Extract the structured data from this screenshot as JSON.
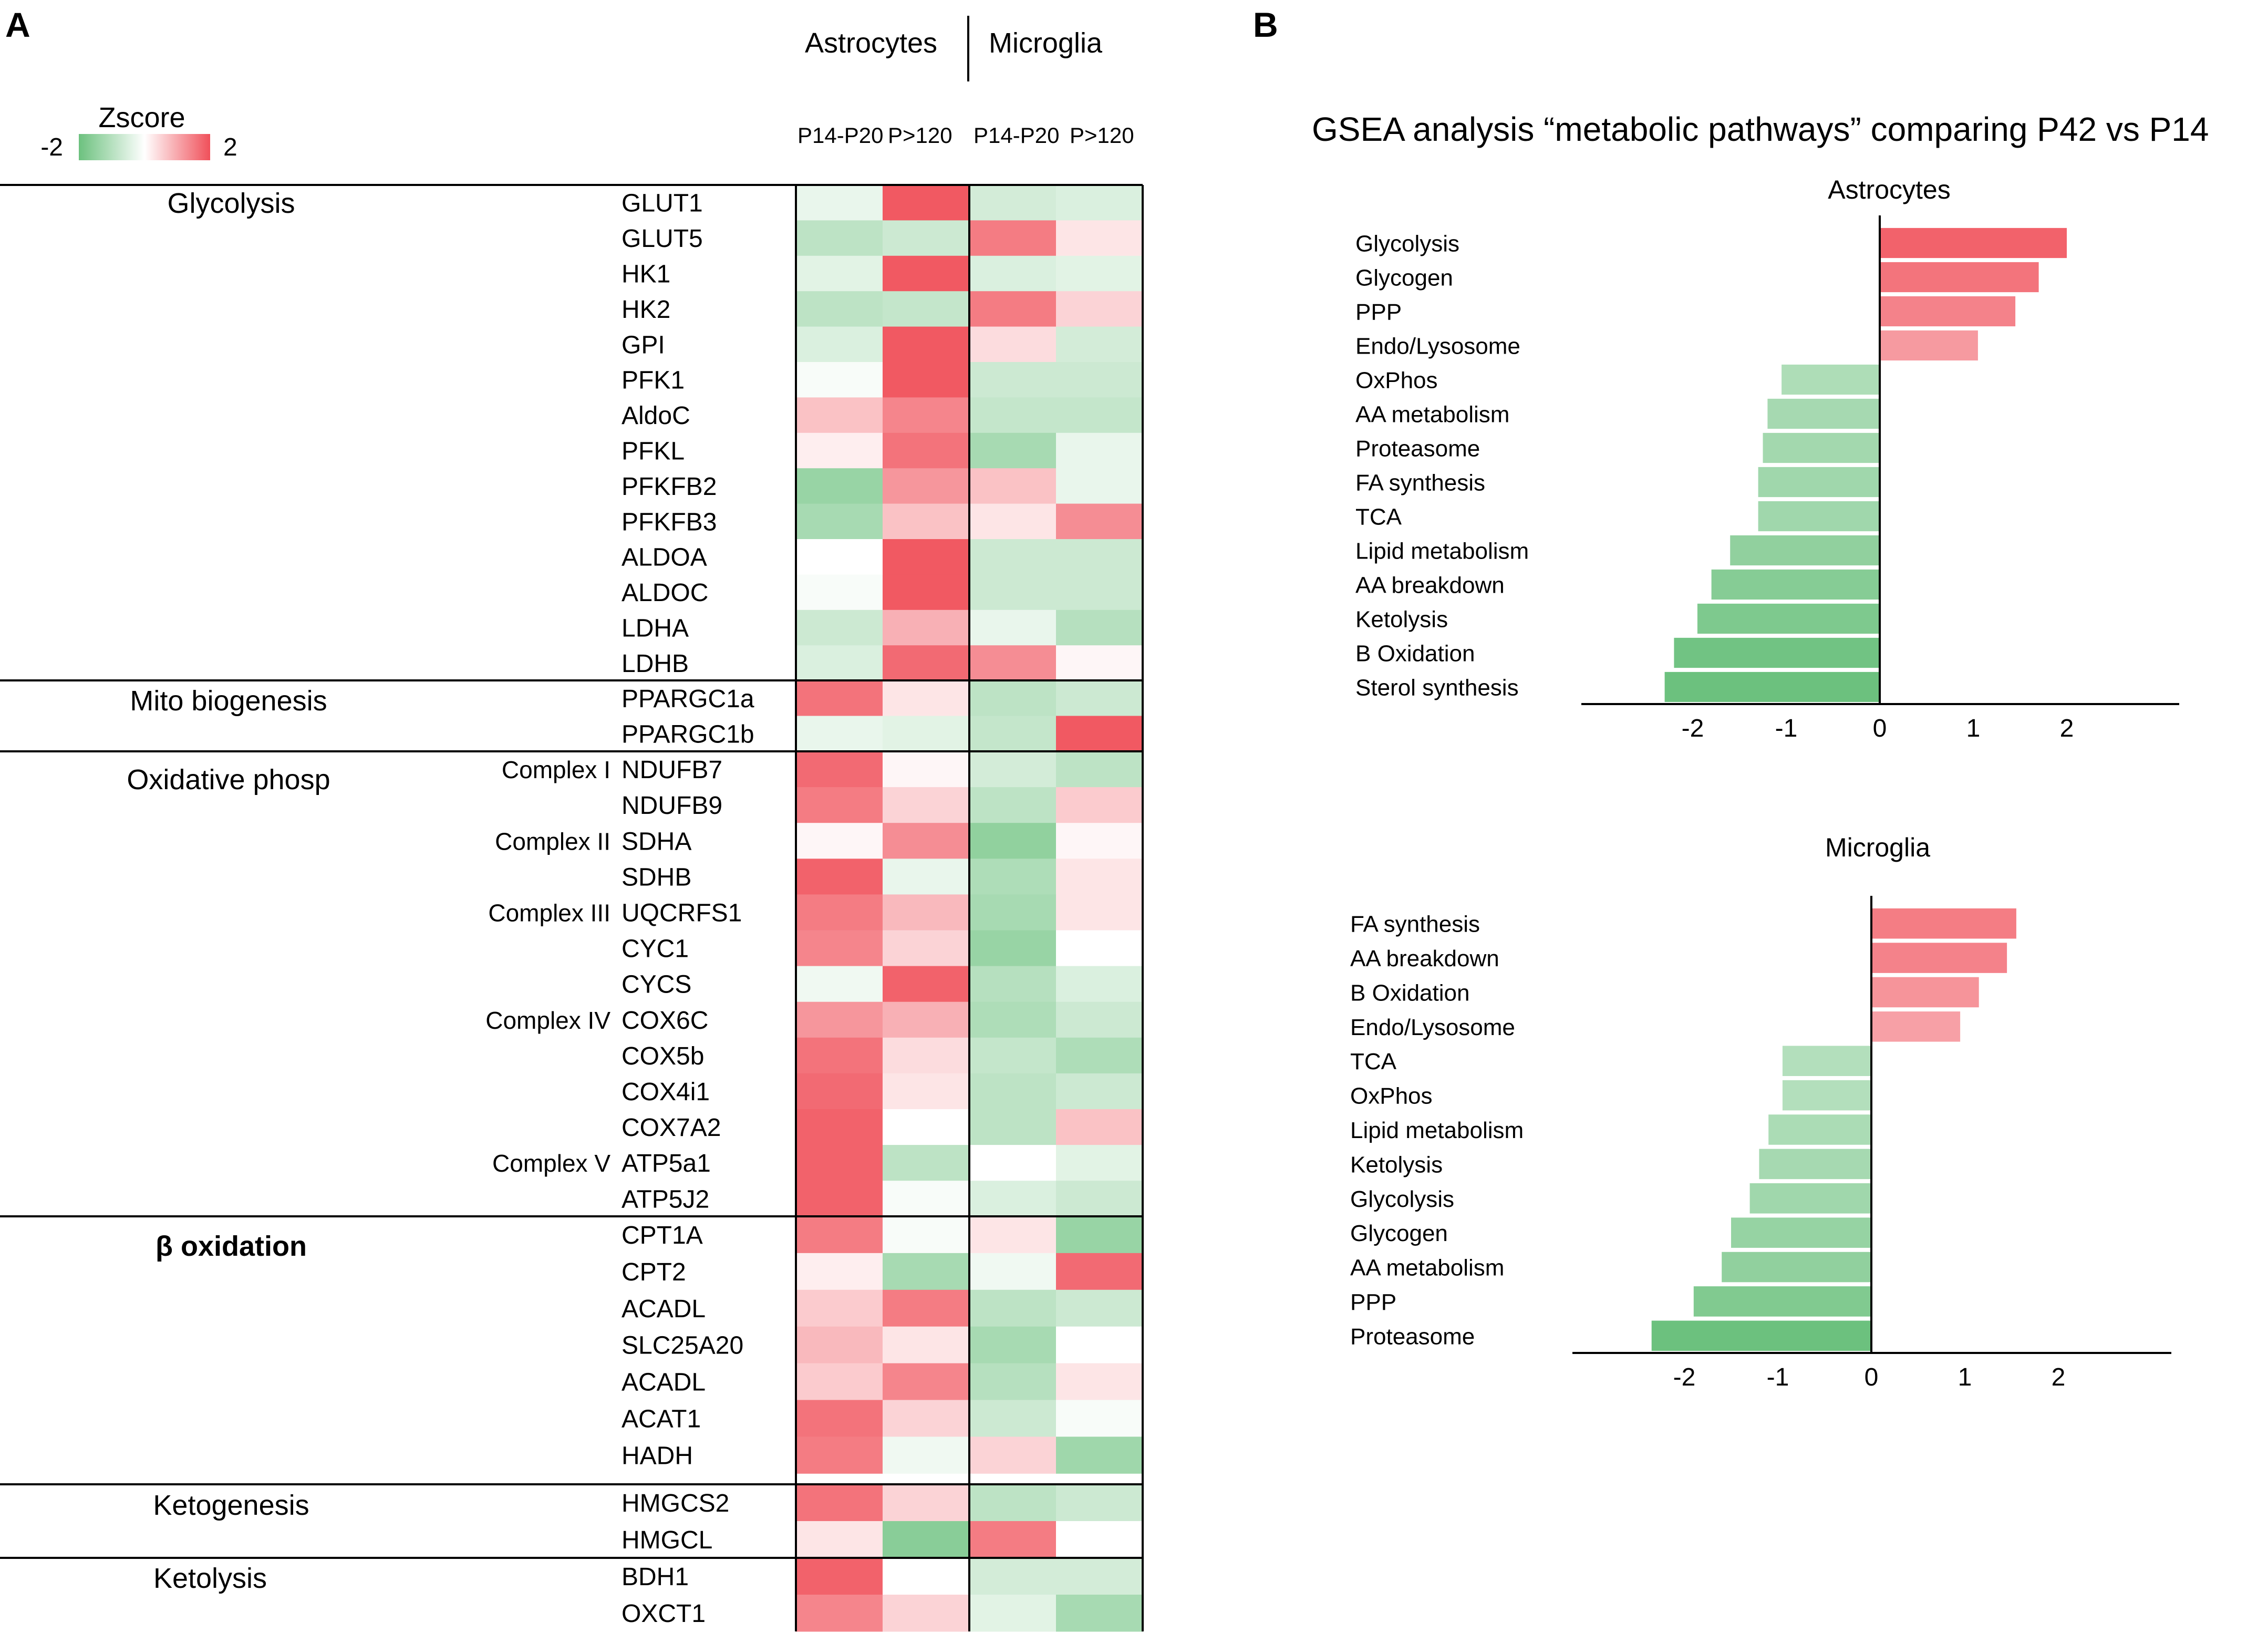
{
  "panel_labels": {
    "a": "A",
    "b": "B"
  },
  "heatmap": {
    "celltypes": [
      "Astrocytes",
      "Microglia"
    ],
    "columns": [
      "P14-P20",
      "P>120",
      "P14-P20",
      "P>120"
    ],
    "legend": {
      "title": "Zscore",
      "min_label": "-2",
      "max_label": "2"
    },
    "colors": {
      "low": "#6cc17e",
      "mid": "#ffffff",
      "high": "#f0505a"
    }
  },
  "chart_data": [
    {
      "type": "heatmap",
      "title": "Zscore",
      "value_range": [
        -2,
        2
      ],
      "celltypes": [
        "Astrocytes",
        "Microglia"
      ],
      "columns": [
        "P14-P20",
        "P>120",
        "P14-P20",
        "P>120"
      ],
      "groups": [
        {
          "name": "Glycolysis",
          "rows": [
            {
              "gene": "GLUT1",
              "values": [
                -0.3,
                1.9,
                -0.6,
                -0.5
              ]
            },
            {
              "gene": "GLUT5",
              "values": [
                -0.9,
                -0.7,
                1.5,
                0.3
              ]
            },
            {
              "gene": "HK1",
              "values": [
                -0.4,
                1.9,
                -0.5,
                -0.4
              ]
            },
            {
              "gene": "HK2",
              "values": [
                -0.9,
                -0.8,
                1.5,
                0.5
              ]
            },
            {
              "gene": "GPI",
              "values": [
                -0.5,
                1.9,
                0.4,
                -0.6
              ]
            },
            {
              "gene": "PFK1",
              "values": [
                -0.1,
                1.9,
                -0.7,
                -0.7
              ]
            },
            {
              "gene": "AldoC",
              "values": [
                0.7,
                1.4,
                -0.8,
                -0.8
              ]
            },
            {
              "gene": "PFKL",
              "values": [
                0.2,
                1.6,
                -1.2,
                -0.3
              ]
            },
            {
              "gene": "PFKFB2",
              "values": [
                -1.4,
                1.2,
                0.7,
                -0.3
              ]
            },
            {
              "gene": "PFKFB3",
              "values": [
                -1.2,
                0.7,
                0.3,
                1.3
              ]
            },
            {
              "gene": "ALDOA",
              "values": [
                0.0,
                1.9,
                -0.7,
                -0.7
              ]
            },
            {
              "gene": "ALDOC",
              "values": [
                -0.1,
                1.9,
                -0.7,
                -0.7
              ]
            },
            {
              "gene": "LDHA",
              "values": [
                -0.7,
                0.9,
                -0.3,
                -1.0
              ]
            },
            {
              "gene": "LDHB",
              "values": [
                -0.5,
                1.7,
                1.3,
                0.1
              ]
            }
          ]
        },
        {
          "name": "Mito biogenesis",
          "rows": [
            {
              "gene": "PPARGC1a",
              "values": [
                1.6,
                0.3,
                -0.9,
                -0.7
              ]
            },
            {
              "gene": "PPARGC1b",
              "values": [
                -0.3,
                -0.4,
                -0.8,
                1.9
              ]
            }
          ]
        },
        {
          "name": "Oxidative phosp",
          "rows": [
            {
              "gene": "NDUFB7",
              "subgroup": "Complex I",
              "values": [
                1.7,
                0.1,
                -0.6,
                -0.9
              ]
            },
            {
              "gene": "NDUFB9",
              "values": [
                1.5,
                0.5,
                -0.9,
                0.6
              ]
            },
            {
              "gene": "SDHA",
              "subgroup": "Complex II",
              "values": [
                0.1,
                1.3,
                -1.5,
                0.1
              ]
            },
            {
              "gene": "SDHB",
              "values": [
                1.8,
                -0.3,
                -1.1,
                0.3
              ]
            },
            {
              "gene": "UQCRFS1",
              "subgroup": "Complex III",
              "values": [
                1.5,
                0.8,
                -1.2,
                0.3
              ]
            },
            {
              "gene": "CYC1",
              "values": [
                1.4,
                0.5,
                -1.4,
                0.0
              ]
            },
            {
              "gene": "CYCS",
              "values": [
                -0.2,
                1.8,
                -1.0,
                -0.5
              ]
            },
            {
              "gene": "COX6C",
              "subgroup": "Complex IV",
              "values": [
                1.2,
                0.9,
                -1.1,
                -0.7
              ]
            },
            {
              "gene": "COX5b",
              "values": [
                1.6,
                0.4,
                -0.8,
                -1.1
              ]
            },
            {
              "gene": "COX4i1",
              "values": [
                1.7,
                0.3,
                -0.9,
                -0.7
              ]
            },
            {
              "gene": "COX7A2",
              "values": [
                1.8,
                0.0,
                -0.9,
                0.7
              ]
            },
            {
              "gene": "ATP5a1",
              "subgroup": "Complex V",
              "values": [
                1.8,
                -0.9,
                0.0,
                -0.4
              ]
            },
            {
              "gene": "ATP5J2",
              "values": [
                1.8,
                -0.1,
                -0.5,
                -0.7
              ]
            }
          ]
        },
        {
          "name": "β oxidation",
          "rows": [
            {
              "gene": "CPT1A",
              "values": [
                1.5,
                -0.1,
                0.3,
                -1.4
              ]
            },
            {
              "gene": "CPT2",
              "values": [
                0.2,
                -1.2,
                -0.2,
                1.7
              ]
            },
            {
              "gene": "ACADL",
              "values": [
                0.6,
                1.5,
                -0.9,
                -0.7
              ]
            },
            {
              "gene": "SLC25A20",
              "values": [
                0.8,
                0.3,
                -1.2,
                0.0
              ]
            },
            {
              "gene": "ACADL",
              "values": [
                0.6,
                1.4,
                -1.0,
                0.3
              ]
            },
            {
              "gene": "ACAT1",
              "values": [
                1.6,
                0.5,
                -0.7,
                -0.1
              ]
            },
            {
              "gene": "HADH",
              "values": [
                1.5,
                -0.2,
                0.5,
                -1.3
              ]
            }
          ]
        },
        {
          "name": "Ketogenesis",
          "rows": [
            {
              "gene": "HMGCS2",
              "values": [
                1.6,
                0.5,
                -0.9,
                -0.7
              ]
            },
            {
              "gene": "HMGCL",
              "values": [
                0.3,
                -1.6,
                1.5,
                0.0
              ]
            }
          ]
        },
        {
          "name": "Ketolysis",
          "rows": [
            {
              "gene": "BDH1",
              "values": [
                1.8,
                0.0,
                -0.6,
                -0.6
              ]
            },
            {
              "gene": "OXCT1",
              "values": [
                1.4,
                0.5,
                -0.4,
                -1.2
              ]
            }
          ]
        }
      ]
    },
    {
      "type": "bar",
      "orientation": "horizontal",
      "title": "Astrocytes",
      "suptitle": "GSEA analysis “metabolic pathways” comparing P42 vs P14",
      "categories": [
        "Glycolysis",
        "Glycogen",
        "PPP",
        "Endo/Lysosome",
        "OxPhos",
        "AA metabolism",
        "Proteasome",
        "FA synthesis",
        "TCA",
        "Lipid metabolism",
        "AA breakdown",
        "Ketolysis",
        "B Oxidation",
        "Sterol synthesis"
      ],
      "values": [
        2.0,
        1.7,
        1.45,
        1.05,
        -1.05,
        -1.2,
        -1.25,
        -1.3,
        -1.3,
        -1.6,
        -1.8,
        -1.95,
        -2.2,
        -2.3
      ],
      "xlim": [
        -3.2,
        3.2
      ],
      "xticks": [
        "-2",
        "-1",
        "0",
        "1",
        "2"
      ],
      "xlabel": "",
      "ylabel": ""
    },
    {
      "type": "bar",
      "orientation": "horizontal",
      "title": "Microglia",
      "categories": [
        "FA synthesis",
        "AA breakdown",
        "B Oxidation",
        "Endo/Lysosome",
        "TCA",
        "OxPhos",
        "Lipid metabolism",
        "Ketolysis",
        "Glycolysis",
        "Glycogen",
        "AA metabolism",
        "PPP",
        "Proteasome"
      ],
      "values": [
        1.55,
        1.45,
        1.15,
        0.95,
        -0.95,
        -0.95,
        -1.1,
        -1.2,
        -1.3,
        -1.5,
        -1.6,
        -1.9,
        -2.35
      ],
      "xlim": [
        -3.2,
        3.2
      ],
      "xticks": [
        "-2",
        "-1",
        "0",
        "1",
        "2"
      ],
      "xlabel": "",
      "ylabel": ""
    }
  ]
}
